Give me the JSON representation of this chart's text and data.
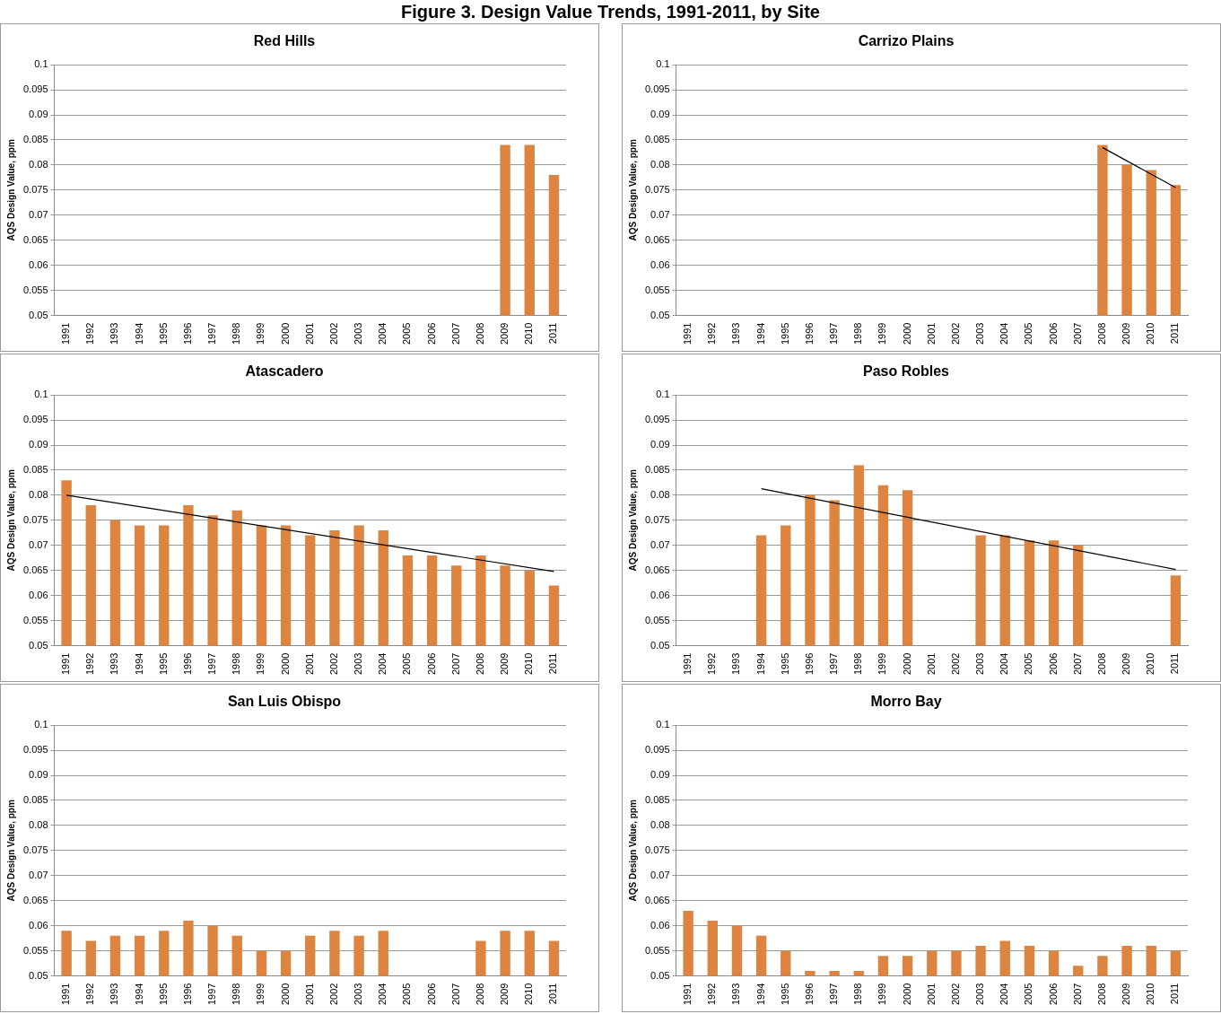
{
  "chart_data": [
    {
      "type": "bar",
      "title": "Red Hills",
      "ylabel": "AQS Design Value, ppm",
      "annotations": [
        "Figure 3. Design Value Trends, 1991-2011, by Site"
      ],
      "categories": [
        "1991",
        "1992",
        "1993",
        "1994",
        "1995",
        "1996",
        "1997",
        "1998",
        "1999",
        "2000",
        "2001",
        "2002",
        "2003",
        "2004",
        "2005",
        "2006",
        "2007",
        "2008",
        "2009",
        "2010",
        "2011"
      ],
      "series": [
        {
          "color": "#dd8540",
          "values": [
            null,
            null,
            null,
            null,
            null,
            null,
            null,
            null,
            null,
            null,
            null,
            null,
            null,
            null,
            null,
            null,
            null,
            null,
            0.084,
            0.084,
            0.078
          ]
        }
      ],
      "ylim": [
        0.05,
        0.1
      ],
      "yticks": [
        0.05,
        0.055,
        0.06,
        0.065,
        0.07,
        0.075,
        0.08,
        0.085,
        0.09,
        0.095,
        0.1
      ],
      "grid": "y",
      "legend": false
    },
    {
      "type": "bar",
      "title": "Carrizo Plains",
      "ylabel": "AQS Design Value, ppm",
      "categories": [
        "1991",
        "1992",
        "1993",
        "1994",
        "1995",
        "1996",
        "1997",
        "1998",
        "1999",
        "2000",
        "2001",
        "2002",
        "2003",
        "2004",
        "2005",
        "2006",
        "2007",
        "2008",
        "2009",
        "2010",
        "2011"
      ],
      "series": [
        {
          "color": "#dd8540",
          "values": [
            null,
            null,
            null,
            null,
            null,
            null,
            null,
            null,
            null,
            null,
            null,
            null,
            null,
            null,
            null,
            null,
            null,
            0.084,
            0.08,
            0.079,
            0.076
          ]
        },
        {
          "type": "line",
          "color": "#000000",
          "values": [
            null,
            null,
            null,
            null,
            null,
            null,
            null,
            null,
            null,
            null,
            null,
            null,
            null,
            null,
            null,
            null,
            null,
            0.0835,
            null,
            null,
            0.0755
          ]
        }
      ],
      "ylim": [
        0.05,
        0.1
      ],
      "yticks": [
        0.05,
        0.055,
        0.06,
        0.065,
        0.07,
        0.075,
        0.08,
        0.085,
        0.09,
        0.095,
        0.1
      ],
      "grid": "y",
      "legend": false,
      "marker": "none"
    },
    {
      "type": "bar",
      "title": "Atascadero",
      "ylabel": "AQS Design Value, ppm",
      "categories": [
        "1991",
        "1992",
        "1993",
        "1994",
        "1995",
        "1996",
        "1997",
        "1998",
        "1999",
        "2000",
        "2001",
        "2002",
        "2003",
        "2004",
        "2005",
        "2006",
        "2007",
        "2008",
        "2009",
        "2010",
        "2011"
      ],
      "series": [
        {
          "color": "#dd8540",
          "values": [
            0.083,
            0.078,
            0.075,
            0.074,
            0.074,
            0.078,
            0.076,
            0.077,
            0.074,
            0.074,
            0.072,
            0.073,
            0.074,
            0.073,
            0.068,
            0.068,
            0.066,
            0.068,
            0.066,
            0.065,
            0.062
          ]
        },
        {
          "type": "line",
          "color": "#000000",
          "values": [
            0.08,
            null,
            null,
            null,
            null,
            null,
            null,
            null,
            null,
            null,
            null,
            null,
            null,
            null,
            null,
            null,
            null,
            null,
            null,
            null,
            0.0648
          ]
        }
      ],
      "ylim": [
        0.05,
        0.1
      ],
      "yticks": [
        0.05,
        0.055,
        0.06,
        0.065,
        0.07,
        0.075,
        0.08,
        0.085,
        0.09,
        0.095,
        0.1
      ],
      "grid": "y",
      "legend": false,
      "marker": "none"
    },
    {
      "type": "bar",
      "title": "Paso Robles",
      "ylabel": "AQS Design Value, ppm",
      "categories": [
        "1991",
        "1992",
        "1993",
        "1994",
        "1995",
        "1996",
        "1997",
        "1998",
        "1999",
        "2000",
        "2001",
        "2002",
        "2003",
        "2004",
        "2005",
        "2006",
        "2007",
        "2008",
        "2009",
        "2010",
        "2011"
      ],
      "series": [
        {
          "color": "#dd8540",
          "values": [
            null,
            null,
            null,
            0.072,
            0.074,
            0.08,
            0.079,
            0.086,
            0.082,
            0.081,
            null,
            null,
            0.072,
            0.072,
            0.071,
            0.071,
            0.07,
            null,
            null,
            null,
            0.064
          ]
        },
        {
          "type": "line",
          "color": "#000000",
          "values": [
            null,
            null,
            null,
            0.0813,
            null,
            null,
            null,
            null,
            null,
            null,
            null,
            null,
            null,
            null,
            null,
            null,
            null,
            null,
            null,
            null,
            0.0652
          ]
        }
      ],
      "ylim": [
        0.05,
        0.1
      ],
      "yticks": [
        0.05,
        0.055,
        0.06,
        0.065,
        0.07,
        0.075,
        0.08,
        0.085,
        0.09,
        0.095,
        0.1
      ],
      "grid": "y",
      "legend": false,
      "marker": "none"
    },
    {
      "type": "bar",
      "title": "San Luis Obispo",
      "ylabel": "AQS Design Value, ppm",
      "categories": [
        "1991",
        "1992",
        "1993",
        "1994",
        "1995",
        "1996",
        "1997",
        "1998",
        "1999",
        "2000",
        "2001",
        "2002",
        "2003",
        "2004",
        "2005",
        "2006",
        "2007",
        "2008",
        "2009",
        "2010",
        "2011"
      ],
      "series": [
        {
          "color": "#dd8540",
          "values": [
            0.059,
            0.057,
            0.058,
            0.058,
            0.059,
            0.061,
            0.06,
            0.058,
            0.055,
            0.055,
            0.058,
            0.059,
            0.058,
            0.059,
            null,
            null,
            null,
            0.057,
            0.059,
            0.059,
            0.057
          ]
        }
      ],
      "ylim": [
        0.05,
        0.1
      ],
      "yticks": [
        0.05,
        0.055,
        0.06,
        0.065,
        0.07,
        0.075,
        0.08,
        0.085,
        0.09,
        0.095,
        0.1
      ],
      "grid": "y",
      "legend": false
    },
    {
      "type": "bar",
      "title": "Morro Bay",
      "ylabel": "AQS Design Value, ppm",
      "categories": [
        "1991",
        "1992",
        "1993",
        "1994",
        "1995",
        "1996",
        "1997",
        "1998",
        "1999",
        "2000",
        "2001",
        "2002",
        "2003",
        "2004",
        "2005",
        "2006",
        "2007",
        "2008",
        "2009",
        "2010",
        "2011"
      ],
      "series": [
        {
          "color": "#dd8540",
          "values": [
            0.063,
            0.061,
            0.06,
            0.058,
            0.055,
            0.051,
            0.051,
            0.051,
            0.054,
            0.054,
            0.055,
            0.055,
            0.056,
            0.057,
            0.056,
            0.055,
            0.052,
            0.054,
            0.056,
            0.056,
            0.055
          ]
        }
      ],
      "ylim": [
        0.05,
        0.1
      ],
      "yticks": [
        0.05,
        0.055,
        0.06,
        0.065,
        0.07,
        0.075,
        0.08,
        0.085,
        0.09,
        0.095,
        0.1
      ],
      "grid": "y",
      "legend": false
    }
  ]
}
